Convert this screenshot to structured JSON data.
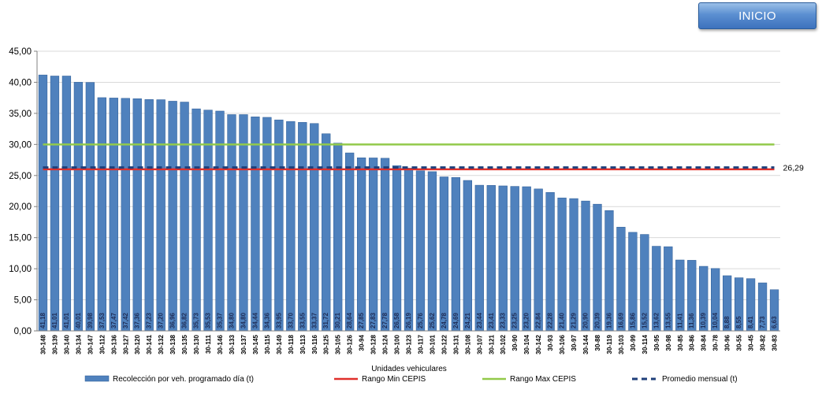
{
  "button": {
    "label": "INICIO"
  },
  "colors": {
    "bar": "#4f81bd",
    "bar_edge": "#2c5b95",
    "min": "#e0302a",
    "max": "#92c94a",
    "avg": "#1f3f7a"
  },
  "chart_data": {
    "type": "bar",
    "xlabel": "Unidades vehiculares",
    "ylim": [
      0,
      45
    ],
    "yticks": [
      "0,00",
      "5,00",
      "10,00",
      "15,00",
      "20,00",
      "25,00",
      "30,00",
      "35,00",
      "40,00",
      "45,00"
    ],
    "categories": [
      "30-148",
      "30-139",
      "30-140",
      "30-134",
      "30-147",
      "30-112",
      "30-136",
      "30-127",
      "30-120",
      "30-141",
      "30-132",
      "30-138",
      "30-135",
      "30-130",
      "30-111",
      "30-146",
      "30-133",
      "30-137",
      "30-145",
      "30-115",
      "30-149",
      "30-118",
      "30-113",
      "30-116",
      "30-125",
      "30-105",
      "30-126",
      "30-94",
      "30-128",
      "30-124",
      "30-100",
      "30-123",
      "30-117",
      "30-101",
      "30-122",
      "30-131",
      "30-108",
      "30-107",
      "30-121",
      "30-102",
      "30-90",
      "30-104",
      "30-142",
      "30-93",
      "30-106",
      "30-97",
      "30-144",
      "30-88",
      "30-119",
      "30-103",
      "30-99",
      "30-114",
      "30-95",
      "30-98",
      "30-85",
      "30-86",
      "30-84",
      "30-78",
      "30-96",
      "30-55",
      "30-45",
      "30-82",
      "30-83"
    ],
    "series": [
      {
        "name": "Recolección por veh. programado día (t)",
        "type": "bar",
        "values": [
          41.18,
          41.01,
          41.01,
          40.01,
          39.98,
          37.53,
          37.47,
          37.42,
          37.36,
          37.23,
          37.2,
          36.96,
          36.82,
          35.73,
          35.53,
          35.37,
          34.8,
          34.8,
          34.44,
          34.36,
          33.95,
          33.7,
          33.55,
          33.37,
          31.72,
          30.21,
          28.64,
          27.85,
          27.83,
          27.78,
          26.58,
          26.19,
          25.76,
          25.62,
          24.78,
          24.69,
          24.21,
          23.44,
          23.41,
          23.33,
          23.25,
          23.2,
          22.84,
          22.28,
          21.4,
          21.29,
          20.9,
          20.39,
          19.36,
          16.69,
          15.86,
          15.52,
          13.62,
          13.55,
          11.41,
          11.36,
          10.39,
          10.04,
          8.88,
          8.55,
          8.41,
          7.73,
          6.63
        ],
        "labels": [
          "41,18",
          "41,01",
          "41,01",
          "40,01",
          "39,98",
          "37,53",
          "37,47",
          "37,42",
          "37,36",
          "37,23",
          "37,20",
          "36,96",
          "36,82",
          "35,73",
          "35,53",
          "35,37",
          "34,80",
          "34,80",
          "34,44",
          "34,36",
          "33,95",
          "33,70",
          "33,55",
          "33,37",
          "31,72",
          "30,21",
          "28,64",
          "27,85",
          "27,83",
          "27,78",
          "26,58",
          "26,19",
          "25,76",
          "25,62",
          "24,78",
          "24,69",
          "24,21",
          "23,44",
          "23,41",
          "23,33",
          "23,25",
          "23,20",
          "22,84",
          "22,28",
          "21,40",
          "21,29",
          "20,90",
          "20,39",
          "19,36",
          "16,69",
          "15,86",
          "15,52",
          "13,62",
          "13,55",
          "11,41",
          "11,36",
          "10,39",
          "10,04",
          "8,88",
          "8,55",
          "8,41",
          "7,73",
          "6,63"
        ]
      },
      {
        "name": "Rango Min CEPIS",
        "type": "line",
        "value": 26
      },
      {
        "name": "Rango Max CEPIS",
        "type": "line",
        "value": 30
      },
      {
        "name": "Promedio mensual (t)",
        "type": "dashed-line",
        "value": 26.29,
        "label": "26,29"
      }
    ],
    "legend": "bottom"
  }
}
